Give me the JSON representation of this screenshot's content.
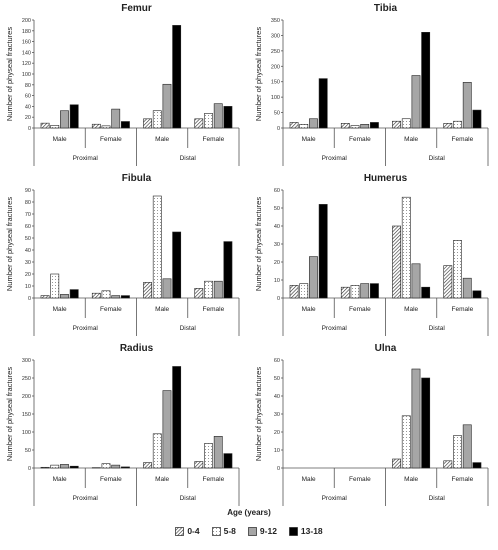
{
  "x_axis_title": "Age (years)",
  "legend": [
    {
      "label": "0-4",
      "pattern": "diag"
    },
    {
      "label": "5-8",
      "pattern": "dots"
    },
    {
      "label": "9-12",
      "pattern": "gray"
    },
    {
      "label": "13-18",
      "pattern": "black"
    }
  ],
  "colors": {
    "gray": "#a6a6a6",
    "black": "#000000",
    "white": "#ffffff",
    "stroke": "#222222"
  },
  "chart_data": [
    {
      "type": "bar",
      "title": "Femur",
      "ylabel": "Number of physeal fractures",
      "ylim": [
        0,
        200
      ],
      "ytick_labels": [
        "0",
        "20",
        "40",
        "60",
        "80",
        "100",
        "120",
        "140",
        "160",
        "180",
        "200"
      ],
      "groups": [
        "Proximal",
        "Distal"
      ],
      "categories": [
        "Male",
        "Female",
        "Male",
        "Female"
      ],
      "series": [
        {
          "name": "0-4",
          "values": [
            9,
            7,
            17,
            17
          ]
        },
        {
          "name": "5-8",
          "values": [
            5,
            4,
            32,
            27
          ]
        },
        {
          "name": "9-12",
          "values": [
            32,
            35,
            81,
            45
          ]
        },
        {
          "name": "13-18",
          "values": [
            43,
            12,
            190,
            40
          ]
        }
      ]
    },
    {
      "type": "bar",
      "title": "Tibia",
      "ylabel": "Number of physeal fractures",
      "ylim": [
        0,
        350
      ],
      "ytick_labels": [
        "0",
        "50",
        "100",
        "150",
        "200",
        "250",
        "300",
        "350"
      ],
      "groups": [
        "Proximal",
        "Distal"
      ],
      "categories": [
        "Male",
        "Female",
        "Male",
        "Female"
      ],
      "series": [
        {
          "name": "0-4",
          "values": [
            18,
            15,
            22,
            15
          ]
        },
        {
          "name": "5-8",
          "values": [
            12,
            8,
            30,
            22
          ]
        },
        {
          "name": "9-12",
          "values": [
            30,
            12,
            170,
            148
          ]
        },
        {
          "name": "13-18",
          "values": [
            160,
            18,
            310,
            58
          ]
        }
      ]
    },
    {
      "type": "bar",
      "title": "Fibula",
      "ylabel": "Number of physeal fractures",
      "ylim": [
        0,
        90
      ],
      "ytick_labels": [
        "0",
        "10",
        "20",
        "30",
        "40",
        "50",
        "60",
        "70",
        "80",
        "90"
      ],
      "groups": [
        "Proximal",
        "Distal"
      ],
      "categories": [
        "Male",
        "Female",
        "Male",
        "Female"
      ],
      "series": [
        {
          "name": "0-4",
          "values": [
            2,
            4,
            13,
            8
          ]
        },
        {
          "name": "5-8",
          "values": [
            20,
            6,
            85,
            14
          ]
        },
        {
          "name": "9-12",
          "values": [
            3,
            2,
            16,
            14
          ]
        },
        {
          "name": "13-18",
          "values": [
            7,
            2,
            55,
            47
          ]
        }
      ]
    },
    {
      "type": "bar",
      "title": "Humerus",
      "ylabel": "Number of physeal fractures",
      "ylim": [
        0,
        60
      ],
      "ytick_labels": [
        "0",
        "10",
        "20",
        "30",
        "40",
        "50",
        "60"
      ],
      "groups": [
        "Proximal",
        "Distal"
      ],
      "categories": [
        "Male",
        "Female",
        "Male",
        "Female"
      ],
      "series": [
        {
          "name": "0-4",
          "values": [
            7,
            6,
            40,
            18
          ]
        },
        {
          "name": "5-8",
          "values": [
            8,
            7,
            56,
            32
          ]
        },
        {
          "name": "9-12",
          "values": [
            23,
            8,
            19,
            11
          ]
        },
        {
          "name": "13-18",
          "values": [
            52,
            8,
            6,
            4
          ]
        }
      ]
    },
    {
      "type": "bar",
      "title": "Radius",
      "ylabel": "Number of physeal fractures",
      "ylim": [
        0,
        300
      ],
      "ytick_labels": [
        "0",
        "50",
        "100",
        "150",
        "200",
        "250",
        "300"
      ],
      "groups": [
        "Proximal",
        "Distal"
      ],
      "categories": [
        "Male",
        "Female",
        "Male",
        "Female"
      ],
      "series": [
        {
          "name": "0-4",
          "values": [
            2,
            1,
            15,
            18
          ]
        },
        {
          "name": "5-8",
          "values": [
            8,
            12,
            95,
            68
          ]
        },
        {
          "name": "9-12",
          "values": [
            10,
            8,
            215,
            88
          ]
        },
        {
          "name": "13-18",
          "values": [
            5,
            3,
            282,
            40
          ]
        }
      ]
    },
    {
      "type": "bar",
      "title": "Ulna",
      "ylabel": "Number of physeal fractures",
      "ylim": [
        0,
        60
      ],
      "ytick_labels": [
        "0",
        "10",
        "20",
        "30",
        "40",
        "50",
        "60"
      ],
      "groups": [
        "Proximal",
        "Distal"
      ],
      "categories": [
        "Male",
        "Female",
        "Male",
        "Female"
      ],
      "series": [
        {
          "name": "0-4",
          "values": [
            0,
            0,
            5,
            4
          ]
        },
        {
          "name": "5-8",
          "values": [
            0,
            0,
            29,
            18
          ]
        },
        {
          "name": "9-12",
          "values": [
            0,
            0,
            55,
            24
          ]
        },
        {
          "name": "13-18",
          "values": [
            0,
            0,
            50,
            3
          ]
        }
      ]
    }
  ]
}
